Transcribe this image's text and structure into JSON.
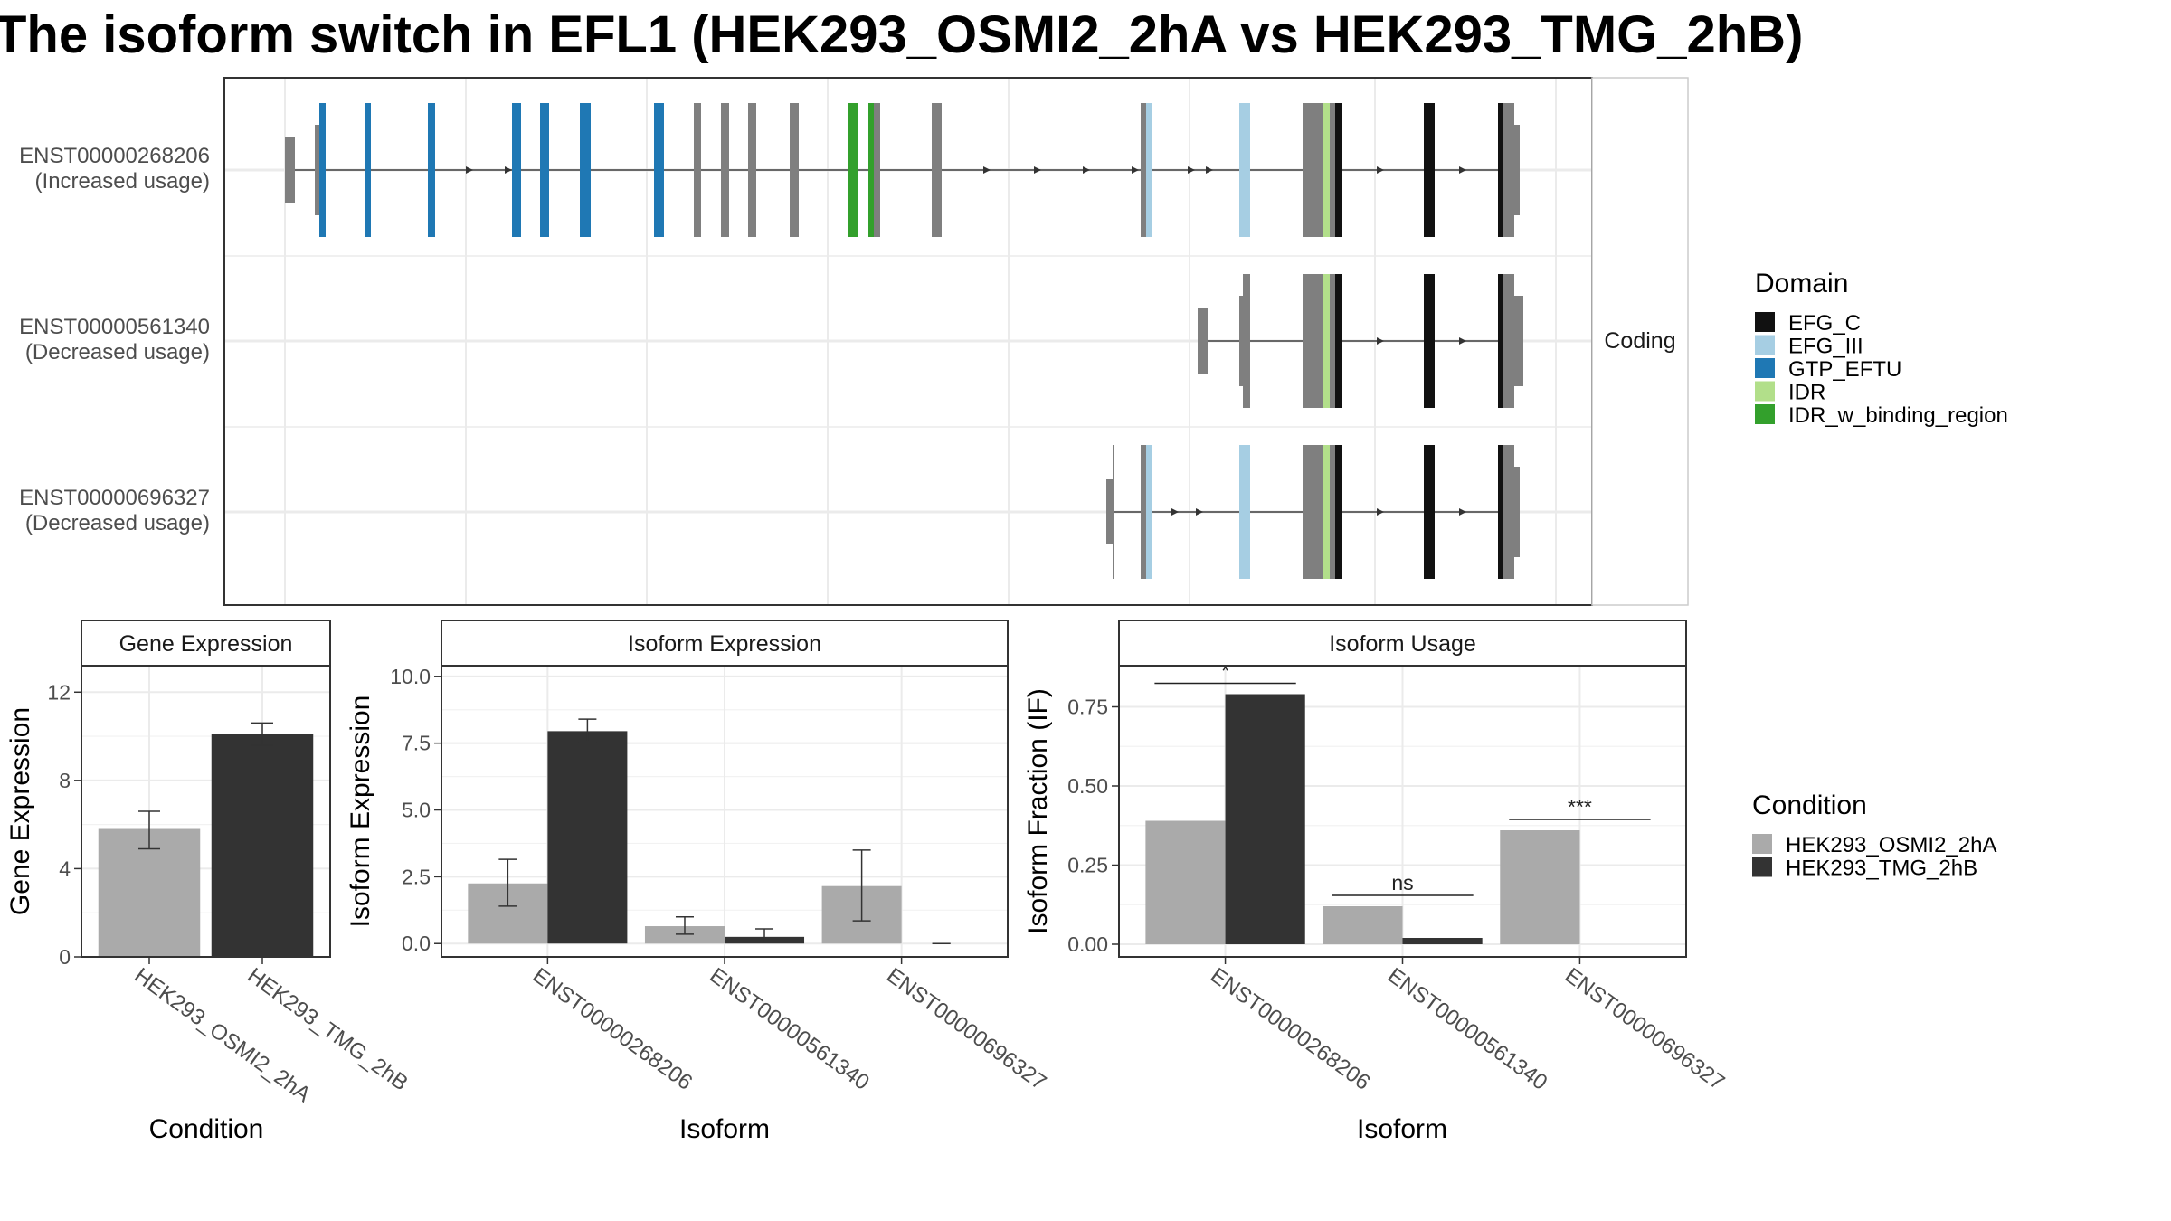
{
  "title": "The isoform switch in EFL1 (HEK293_OSMI2_2hA vs HEK293_TMG_2hB)",
  "colors": {
    "EFG_C": "#111111",
    "EFG_III": "#a6cee3",
    "GTP_EFTU": "#1f78b4",
    "IDR": "#b2df8a",
    "IDR_w_binding_region": "#33a02c",
    "noncoding": "#7f7f7f",
    "condA": "#aaaaaa",
    "condB": "#333333"
  },
  "structure": {
    "strip_label": "Coding",
    "isoforms": [
      {
        "id": "ENST00000268206",
        "label_line1": "ENST00000268206",
        "label_line2": "(Increased usage)"
      },
      {
        "id": "ENST00000561340",
        "label_line1": "ENST00000561340",
        "label_line2": "(Decreased usage)"
      },
      {
        "id": "ENST00000696327",
        "label_line1": "ENST00000696327",
        "label_line2": "(Decreased usage)"
      }
    ]
  },
  "legend_domain": {
    "title": "Domain",
    "items": [
      {
        "label": "EFG_C",
        "color": "#111111"
      },
      {
        "label": "EFG_III",
        "color": "#a6cee3"
      },
      {
        "label": "GTP_EFTU",
        "color": "#1f78b4"
      },
      {
        "label": "IDR",
        "color": "#b2df8a"
      },
      {
        "label": "IDR_w_binding_region",
        "color": "#33a02c"
      }
    ]
  },
  "legend_condition": {
    "title": "Condition",
    "items": [
      {
        "label": "HEK293_OSMI2_2hA",
        "color": "#aaaaaa"
      },
      {
        "label": "HEK293_TMG_2hB",
        "color": "#333333"
      }
    ]
  },
  "chart_data": [
    {
      "type": "bar",
      "title": "Gene Expression",
      "xlabel": "Condition",
      "ylabel": "Gene Expression",
      "categories": [
        "HEK293_OSMI2_2hA",
        "HEK293_TMG_2hB"
      ],
      "values": [
        5.8,
        10.1
      ],
      "errors_low": [
        4.9,
        9.6
      ],
      "errors_high": [
        6.6,
        10.6
      ],
      "ylim": [
        0,
        13.2
      ],
      "yticks": [
        0,
        4,
        8,
        12
      ],
      "ytick_labels": [
        "0",
        "4",
        "8",
        "12"
      ],
      "grid": true
    },
    {
      "type": "bar",
      "title": "Isoform Expression",
      "xlabel": "Isoform",
      "ylabel": "Isoform Expression",
      "categories": [
        "ENST00000268206",
        "ENST00000561340",
        "ENST00000696327"
      ],
      "series": [
        {
          "name": "HEK293_OSMI2_2hA",
          "values": [
            2.25,
            0.65,
            2.15
          ],
          "err_low": [
            1.4,
            0.35,
            0.85
          ],
          "err_high": [
            3.15,
            1.0,
            3.5
          ]
        },
        {
          "name": "HEK293_TMG_2hB",
          "values": [
            7.95,
            0.25,
            0.0
          ],
          "err_low": [
            7.55,
            0.05,
            0.0
          ],
          "err_high": [
            8.4,
            0.55,
            0.0
          ]
        }
      ],
      "ylim": [
        -0.5,
        10.4
      ],
      "yticks": [
        0,
        2.5,
        5,
        7.5,
        10
      ],
      "ytick_labels": [
        "0.0",
        "2.5",
        "5.0",
        "7.5",
        "10.0"
      ],
      "grid": true
    },
    {
      "type": "bar",
      "title": "Isoform Usage",
      "xlabel": "Isoform",
      "ylabel": "Isoform Fraction (IF)",
      "categories": [
        "ENST00000268206",
        "ENST00000561340",
        "ENST00000696327"
      ],
      "series": [
        {
          "name": "HEK293_OSMI2_2hA",
          "values": [
            0.39,
            0.12,
            0.36
          ]
        },
        {
          "name": "HEK293_TMG_2hB",
          "values": [
            0.79,
            0.02,
            0.0
          ]
        }
      ],
      "significance": [
        "*",
        "ns",
        "***"
      ],
      "ylim": [
        -0.04,
        0.88
      ],
      "yticks": [
        0,
        0.25,
        0.5,
        0.75
      ],
      "ytick_labels": [
        "0.00",
        "0.25",
        "0.50",
        "0.75"
      ],
      "grid": true
    }
  ]
}
